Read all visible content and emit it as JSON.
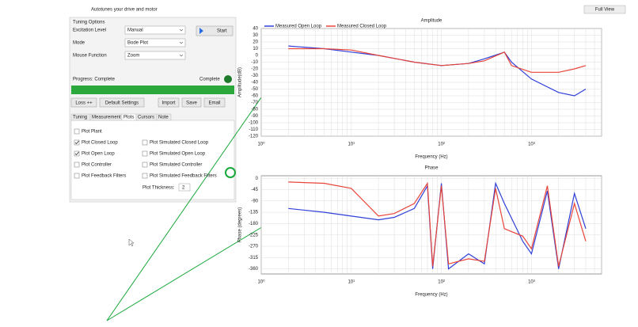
{
  "panel": {
    "title": "Autotunes your drive and motor",
    "group": "Tuning Options",
    "fields": [
      {
        "label": "Excitation Level",
        "value": "Manual"
      },
      {
        "label": "Mode",
        "value": "Bode Plot"
      },
      {
        "label": "Mouse Function",
        "value": "Zoom"
      }
    ],
    "start": "Start",
    "progress": "Progress:  Complete",
    "status": "Complete",
    "buttons": [
      "Loss ++",
      "Default Settings",
      "Import",
      "Save",
      "Email"
    ],
    "tabs": [
      "Tuning",
      "Measurement",
      "Plots",
      "Cursors",
      "Note"
    ],
    "checks_left": [
      {
        "label": "Plot Plant",
        "checked": false
      },
      {
        "label": "Plot Closed Loop",
        "checked": true
      },
      {
        "label": "Plot Open Loop",
        "checked": true
      },
      {
        "label": "Plot Controller",
        "checked": false
      },
      {
        "label": "Plot Feedback Filters",
        "checked": false
      }
    ],
    "checks_right": [
      {
        "label": "Plot Simulated Closed Loop",
        "checked": false
      },
      {
        "label": "Plot Simulated Open Loop",
        "checked": false
      },
      {
        "label": "Plot Simulated Controller",
        "checked": false
      },
      {
        "label": "Plot Simulated Feedback Filters",
        "checked": false
      }
    ],
    "thickness_label": "Plot Thickness:",
    "thickness": "2"
  },
  "full_view": "Full View",
  "chart_data": [
    {
      "type": "line",
      "title": "Amplitude",
      "x_label": "Frequency (Hz)",
      "y_label": "Amplitude(dB)",
      "log_x": true,
      "grid": true,
      "xlim": [
        1,
        6000
      ],
      "xticks": [
        {
          "value": 1,
          "label": "10⁰"
        },
        {
          "value": 10,
          "label": "10¹"
        },
        {
          "value": 100,
          "label": "10²"
        },
        {
          "value": 1000,
          "label": "10³"
        }
      ],
      "ylim": [
        -120,
        40
      ],
      "yticks": [
        40,
        30,
        20,
        10,
        0,
        -10,
        -20,
        -30,
        -40,
        -50,
        -60,
        -70,
        -80,
        -90,
        -100,
        -110,
        -120
      ],
      "x": [
        2,
        5,
        10,
        20,
        50,
        100,
        200,
        300,
        500,
        600,
        1000,
        2000,
        3000,
        4000
      ],
      "series": [
        {
          "name": "Measured Open Loop",
          "color": "#2f3fd8",
          "values": [
            14,
            10,
            5,
            0,
            -10,
            -15,
            -12,
            -5,
            5,
            -10,
            -35,
            -55,
            -60,
            -50
          ]
        },
        {
          "name": "Measured Closed Loop",
          "color": "#e8453a",
          "values": [
            10,
            10,
            8,
            0,
            -10,
            -15,
            -12,
            -8,
            5,
            -15,
            -25,
            -25,
            -20,
            -15
          ]
        }
      ]
    },
    {
      "type": "line",
      "title": "Phase",
      "x_label": "Frequency (Hz)",
      "y_label": "Phase (degrees)",
      "log_x": true,
      "grid": true,
      "xlim": [
        1,
        6000
      ],
      "xticks": [
        {
          "value": 1,
          "label": "10⁰"
        },
        {
          "value": 10,
          "label": "10¹"
        },
        {
          "value": 100,
          "label": "10²"
        },
        {
          "value": 1000,
          "label": "10³"
        }
      ],
      "ylim": [
        -380,
        10
      ],
      "yticks": [
        0,
        -45,
        -90,
        -135,
        -180,
        -225,
        -270,
        -315,
        -360
      ],
      "x": [
        2,
        5,
        10,
        20,
        30,
        50,
        70,
        80,
        100,
        120,
        200,
        300,
        400,
        500,
        800,
        1000,
        1500,
        2000,
        3000,
        4000
      ],
      "series": [
        {
          "name": "Measured Open Loop",
          "color": "#2f3fd8",
          "values": [
            -120,
            -135,
            -150,
            -165,
            -155,
            -120,
            -30,
            -360,
            -20,
            -360,
            -300,
            -340,
            -20,
            -100,
            -250,
            -300,
            -50,
            -360,
            -60,
            -200
          ]
        },
        {
          "name": "Measured Closed Loop",
          "color": "#e8453a",
          "values": [
            -15,
            -20,
            -40,
            -150,
            -140,
            -100,
            -20,
            -350,
            -30,
            -340,
            -320,
            -330,
            -40,
            -200,
            -230,
            -280,
            -30,
            -350,
            -100,
            -250
          ]
        }
      ]
    }
  ]
}
